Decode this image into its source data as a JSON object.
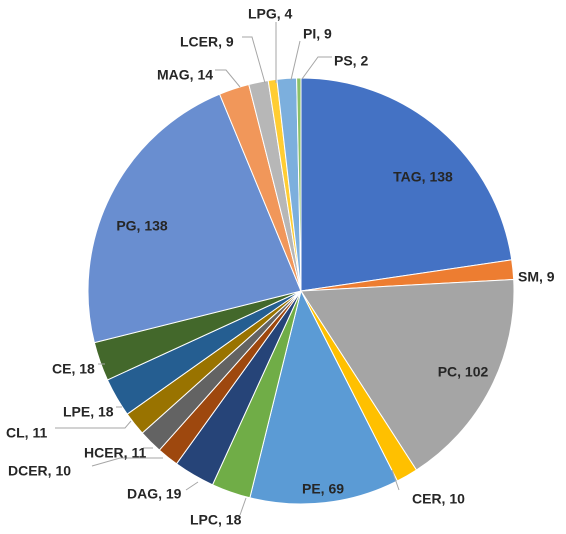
{
  "chart_data": {
    "type": "pie",
    "title": "",
    "start_angle_deg": 0,
    "direction": "clockwise",
    "legend": "none",
    "slices": [
      {
        "label": "TAG",
        "value": 138,
        "text": "TAG, 138",
        "color": "#4472C4"
      },
      {
        "label": "SM",
        "value": 9,
        "text": "SM, 9",
        "color": "#ED7D31"
      },
      {
        "label": "PC",
        "value": 102,
        "text": "PC, 102",
        "color": "#A5A5A5"
      },
      {
        "label": "CER",
        "value": 10,
        "text": "CER, 10",
        "color": "#FFC000"
      },
      {
        "label": "PE",
        "value": 69,
        "text": "PE, 69",
        "color": "#5B9BD5"
      },
      {
        "label": "LPC",
        "value": 18,
        "text": "LPC, 18",
        "color": "#70AD47"
      },
      {
        "label": "DAG",
        "value": 19,
        "text": "DAG, 19",
        "color": "#264478"
      },
      {
        "label": "DCER",
        "value": 10,
        "text": "DCER, 10",
        "color": "#9E480E"
      },
      {
        "label": "HCER",
        "value": 11,
        "text": "HCER, 11",
        "color": "#636363"
      },
      {
        "label": "CL",
        "value": 11,
        "text": "CL, 11",
        "color": "#997300"
      },
      {
        "label": "LPE",
        "value": 18,
        "text": "LPE, 18",
        "color": "#255E91"
      },
      {
        "label": "CE",
        "value": 18,
        "text": "CE, 18",
        "color": "#43682B"
      },
      {
        "label": "PG",
        "value": 138,
        "text": "PG, 138",
        "color": "#698ED0"
      },
      {
        "label": "MAG",
        "value": 14,
        "text": "MAG, 14",
        "color": "#F1975A"
      },
      {
        "label": "LCER",
        "value": 9,
        "text": "LCER, 9",
        "color": "#B7B7B7"
      },
      {
        "label": "LPG",
        "value": 4,
        "text": "LPG, 4",
        "color": "#FFCD33"
      },
      {
        "label": "PI",
        "value": 9,
        "text": "PI, 9",
        "color": "#7CAFDD"
      },
      {
        "label": "PS",
        "value": 2,
        "text": "PS, 2",
        "color": "#8CC168"
      }
    ]
  }
}
